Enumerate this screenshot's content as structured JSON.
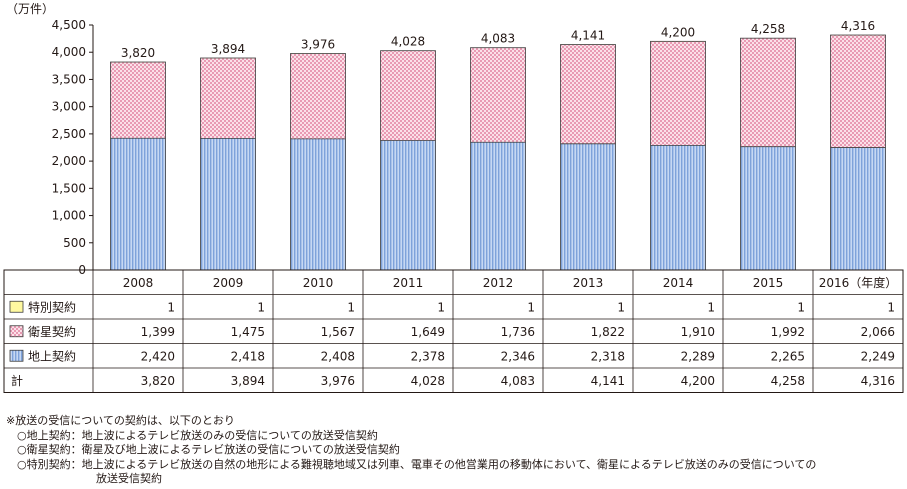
{
  "chart_data": {
    "type": "bar",
    "stacked": true,
    "unit": "（万件）",
    "categories": [
      "2008",
      "2009",
      "2010",
      "2011",
      "2012",
      "2013",
      "2014",
      "2015",
      "2016"
    ],
    "last_category_suffix": "（年度）",
    "series": [
      {
        "name": "特別契約",
        "color": "#fff9a0",
        "values": [
          1,
          1,
          1,
          1,
          1,
          1,
          1,
          1,
          1
        ]
      },
      {
        "name": "衛星契約",
        "color": "#f6c4d2",
        "values": [
          1399,
          1475,
          1567,
          1649,
          1736,
          1822,
          1910,
          1992,
          2066
        ]
      },
      {
        "name": "地上契約",
        "color": "#9ebde8",
        "values": [
          2420,
          2418,
          2408,
          2378,
          2346,
          2318,
          2289,
          2265,
          2249
        ]
      }
    ],
    "totals_label": "計",
    "totals": [
      3820,
      3894,
      3976,
      4028,
      4083,
      4141,
      4200,
      4258,
      4316
    ],
    "ylim": [
      0,
      4500
    ],
    "yticks": [
      0,
      500,
      1000,
      1500,
      2000,
      2500,
      3000,
      3500,
      4000,
      4500
    ]
  },
  "notes": {
    "header": "※放送の受信についての契約は、以下のとおり",
    "items": [
      "○地上契約：地上波によるテレビ放送のみの受信についての放送受信契約",
      "○衛星契約：衛星及び地上波によるテレビ放送の受信についての放送受信契約",
      "○特別契約：地上波によるテレビ放送の自然の地形による難視聴地域又は列車、電車その他営業用の移動体において、衛星によるテレビ放送のみの受信についての"
    ],
    "continuation": "放送受信契約"
  }
}
